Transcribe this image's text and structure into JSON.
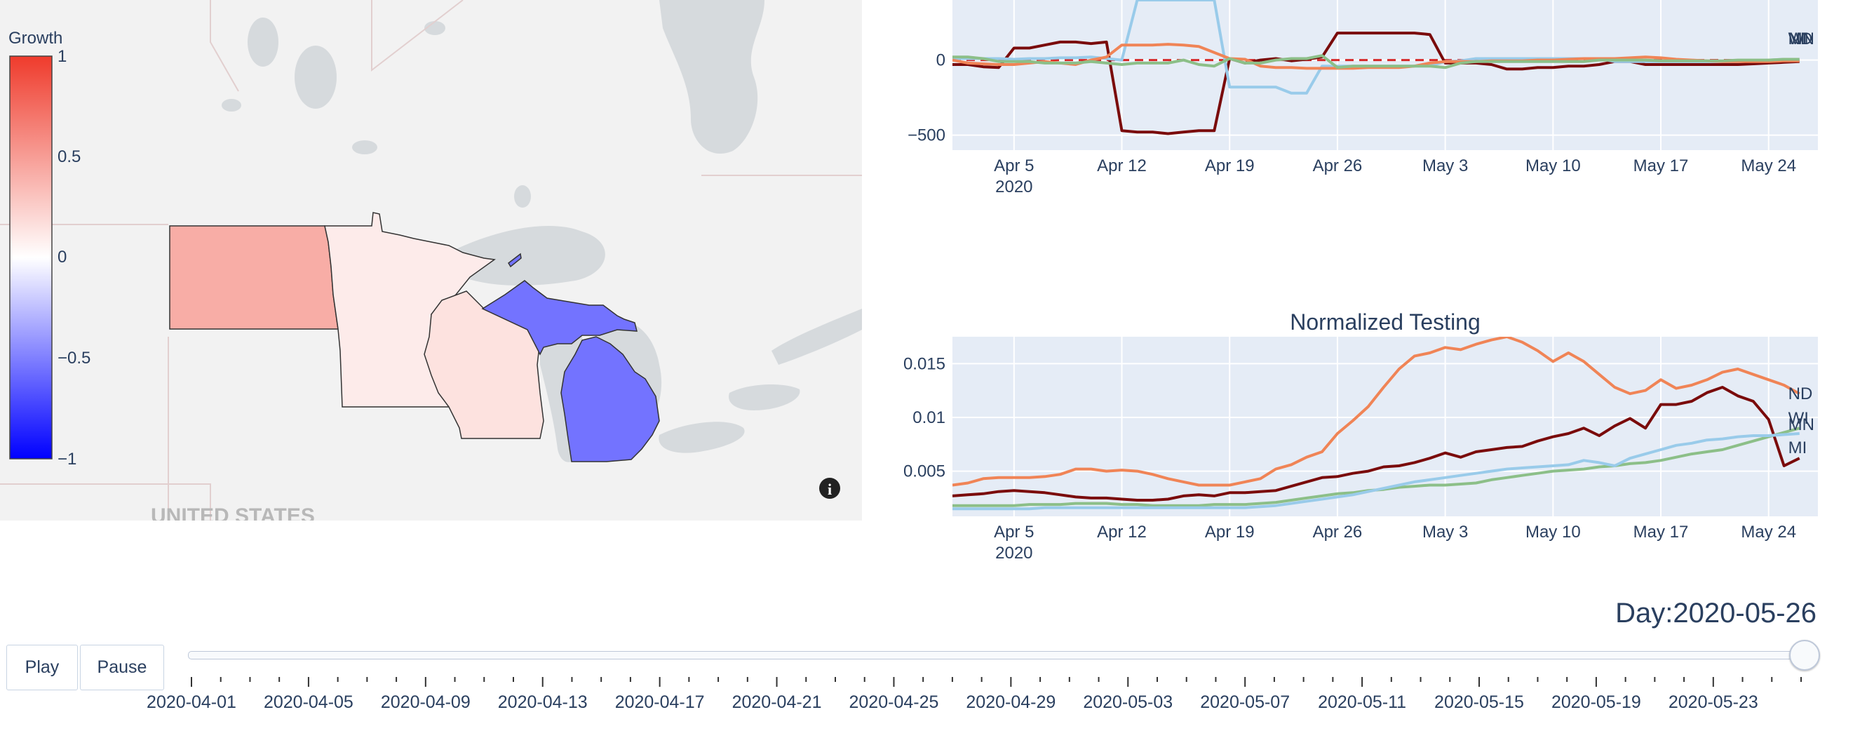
{
  "colors": {
    "MN": "#8cbf88",
    "WI": "#7a0b0b",
    "MI": "#99cbea",
    "ND": "#f08456",
    "zero_line": "#d62728",
    "grid_bg": "#e5ecf6",
    "axis_text": "#2a3f5f"
  },
  "map": {
    "basemap_label": "UNITED STATES",
    "info_icon": "info-icon",
    "colorbar": {
      "title": "Growth",
      "ticks": [
        "1",
        "0.5",
        "0",
        "−0.5",
        "−1"
      ],
      "range": [
        -1,
        1
      ]
    },
    "states": [
      {
        "code": "ND",
        "growth": 0.42
      },
      {
        "code": "MN",
        "growth": 0.1
      },
      {
        "code": "WI",
        "growth": 0.15
      },
      {
        "code": "MI",
        "growth": -0.55
      }
    ]
  },
  "chart_data": [
    {
      "type": "line",
      "title": "",
      "yticks": [
        "0",
        "−500"
      ],
      "ylim": [
        -600,
        400
      ],
      "xticks": [
        "Apr 5",
        "Apr 12",
        "Apr 19",
        "Apr 26",
        "May 3",
        "May 10",
        "May 17",
        "May 24"
      ],
      "xtick_sub": "2020",
      "x_start": "2020-04-01",
      "x_end": "2020-05-26",
      "reference_line": 0,
      "end_labels": [
        "MN",
        "WI",
        "MI",
        "ND"
      ],
      "series": [
        {
          "name": "WI",
          "values": [
            -30,
            -30,
            -45,
            -50,
            80,
            80,
            100,
            120,
            120,
            110,
            120,
            -470,
            -480,
            -480,
            -490,
            -480,
            -470,
            -470,
            10,
            -20,
            0,
            10,
            -5,
            5,
            20,
            180,
            180,
            180,
            180,
            180,
            180,
            170,
            -20,
            -20,
            -20,
            -30,
            -60,
            -60,
            -50,
            -50,
            -40,
            -40,
            -30,
            -10,
            -10,
            -30,
            -30,
            -30,
            -30,
            -30,
            -30,
            -30,
            -25,
            -20,
            -15,
            -10
          ]
        },
        {
          "name": "MI",
          "values": [
            10,
            10,
            10,
            10,
            5,
            10,
            10,
            15,
            15,
            20,
            10,
            0,
            400,
            400,
            400,
            400,
            400,
            400,
            -180,
            -180,
            -180,
            -180,
            -220,
            -220,
            -40,
            -40,
            -40,
            -40,
            -40,
            -40,
            -40,
            -40,
            -10,
            -5,
            10,
            10,
            10,
            10,
            10,
            10,
            10,
            10,
            10,
            -10,
            -10,
            -10,
            -10,
            -10,
            -10,
            -10,
            -10,
            -10,
            -5,
            0,
            5,
            5
          ]
        },
        {
          "name": "ND",
          "values": [
            0,
            -20,
            -25,
            -30,
            -30,
            -20,
            -10,
            -20,
            -30,
            0,
            20,
            100,
            100,
            100,
            105,
            100,
            90,
            50,
            10,
            5,
            -40,
            -50,
            -50,
            -55,
            -55,
            -55,
            -55,
            -50,
            -50,
            -50,
            -40,
            -20,
            -10,
            -10,
            -10,
            -5,
            -5,
            -5,
            0,
            0,
            5,
            10,
            10,
            10,
            15,
            20,
            15,
            5,
            0,
            -5,
            -10,
            -10,
            -10,
            -10,
            -5,
            -5
          ]
        },
        {
          "name": "MN",
          "values": [
            20,
            20,
            10,
            -10,
            -10,
            -10,
            -20,
            -20,
            -20,
            -10,
            -20,
            -30,
            -20,
            -20,
            -20,
            0,
            -30,
            -40,
            10,
            -20,
            -20,
            0,
            10,
            10,
            30,
            -50,
            -40,
            -40,
            -40,
            -40,
            -40,
            -40,
            -50,
            -20,
            -10,
            -10,
            -10,
            -10,
            -10,
            -10,
            -10,
            -10,
            0,
            0,
            0,
            0,
            -5,
            -5,
            -5,
            -5,
            -5,
            0,
            0,
            0,
            5,
            5
          ]
        }
      ]
    },
    {
      "type": "line",
      "title": "Normalized Testing",
      "yticks": [
        "0.015",
        "0.01",
        "0.005"
      ],
      "ylim": [
        0.0008,
        0.0175
      ],
      "xticks": [
        "Apr 5",
        "Apr 12",
        "Apr 19",
        "Apr 26",
        "May 3",
        "May 10",
        "May 17",
        "May 24"
      ],
      "xtick_sub": "2020",
      "x_start": "2020-04-01",
      "x_end": "2020-05-26",
      "end_labels": [
        "ND",
        "WI",
        "MN",
        "MI"
      ],
      "series": [
        {
          "name": "ND",
          "values": [
            0.0037,
            0.0039,
            0.0043,
            0.0044,
            0.0044,
            0.0044,
            0.0045,
            0.0047,
            0.0052,
            0.0052,
            0.005,
            0.0051,
            0.005,
            0.0047,
            0.0043,
            0.004,
            0.0037,
            0.0037,
            0.0037,
            0.004,
            0.0043,
            0.0052,
            0.0056,
            0.0063,
            0.0068,
            0.0085,
            0.0097,
            0.011,
            0.0128,
            0.0145,
            0.0157,
            0.016,
            0.0165,
            0.0163,
            0.0168,
            0.0172,
            0.0175,
            0.017,
            0.0162,
            0.0152,
            0.016,
            0.0152,
            0.014,
            0.0128,
            0.0122,
            0.0125,
            0.0135,
            0.0127,
            0.013,
            0.0135,
            0.0142,
            0.0145,
            0.014,
            0.0135,
            0.013,
            0.0122
          ]
        },
        {
          "name": "WI",
          "values": [
            0.0027,
            0.0028,
            0.0029,
            0.0031,
            0.0032,
            0.0031,
            0.003,
            0.0028,
            0.0026,
            0.0025,
            0.0025,
            0.0024,
            0.0023,
            0.0023,
            0.0024,
            0.0027,
            0.0028,
            0.0027,
            0.003,
            0.003,
            0.0031,
            0.0032,
            0.0036,
            0.004,
            0.0044,
            0.0045,
            0.0048,
            0.005,
            0.0054,
            0.0055,
            0.0058,
            0.0062,
            0.0067,
            0.0063,
            0.0068,
            0.007,
            0.0072,
            0.0073,
            0.0078,
            0.0082,
            0.0085,
            0.009,
            0.0083,
            0.0092,
            0.0099,
            0.009,
            0.0112,
            0.0112,
            0.0115,
            0.0123,
            0.0128,
            0.012,
            0.0115,
            0.0098,
            0.0055,
            0.0062
          ]
        },
        {
          "name": "MN",
          "values": [
            0.0018,
            0.0018,
            0.0018,
            0.0018,
            0.0018,
            0.0019,
            0.0019,
            0.0019,
            0.002,
            0.002,
            0.002,
            0.0019,
            0.0019,
            0.0018,
            0.0018,
            0.0018,
            0.0018,
            0.0019,
            0.0019,
            0.0019,
            0.002,
            0.0021,
            0.0023,
            0.0025,
            0.0027,
            0.0029,
            0.003,
            0.0032,
            0.0033,
            0.0035,
            0.0036,
            0.0037,
            0.0037,
            0.0038,
            0.0039,
            0.0042,
            0.0044,
            0.0046,
            0.0048,
            0.005,
            0.0051,
            0.0052,
            0.0054,
            0.0055,
            0.0057,
            0.0058,
            0.006,
            0.0063,
            0.0066,
            0.0068,
            0.007,
            0.0074,
            0.0078,
            0.0082,
            0.0086,
            0.009
          ]
        },
        {
          "name": "MI",
          "values": [
            0.0015,
            0.0015,
            0.0015,
            0.0015,
            0.0015,
            0.0015,
            0.0016,
            0.0016,
            0.0016,
            0.0016,
            0.0016,
            0.0016,
            0.0016,
            0.0016,
            0.0016,
            0.0016,
            0.0016,
            0.0016,
            0.0016,
            0.0016,
            0.0017,
            0.0018,
            0.002,
            0.0022,
            0.0024,
            0.0026,
            0.0028,
            0.0031,
            0.0034,
            0.0037,
            0.004,
            0.0042,
            0.0044,
            0.0046,
            0.0048,
            0.005,
            0.0052,
            0.0053,
            0.0054,
            0.0055,
            0.0056,
            0.006,
            0.0058,
            0.0055,
            0.0062,
            0.0066,
            0.007,
            0.0074,
            0.0076,
            0.0079,
            0.008,
            0.0082,
            0.0083,
            0.0083,
            0.0084,
            0.0085
          ]
        }
      ]
    }
  ],
  "controls": {
    "play_label": "Play",
    "pause_label": "Pause",
    "day_prefix": "Day:",
    "current_day": "2020-05-26",
    "slider_position": 1.0,
    "slider_ticks": [
      "2020-04-01",
      "2020-04-05",
      "2020-04-09",
      "2020-04-13",
      "2020-04-17",
      "2020-04-21",
      "2020-04-25",
      "2020-04-29",
      "2020-05-03",
      "2020-05-07",
      "2020-05-11",
      "2020-05-15",
      "2020-05-19",
      "2020-05-23"
    ]
  }
}
